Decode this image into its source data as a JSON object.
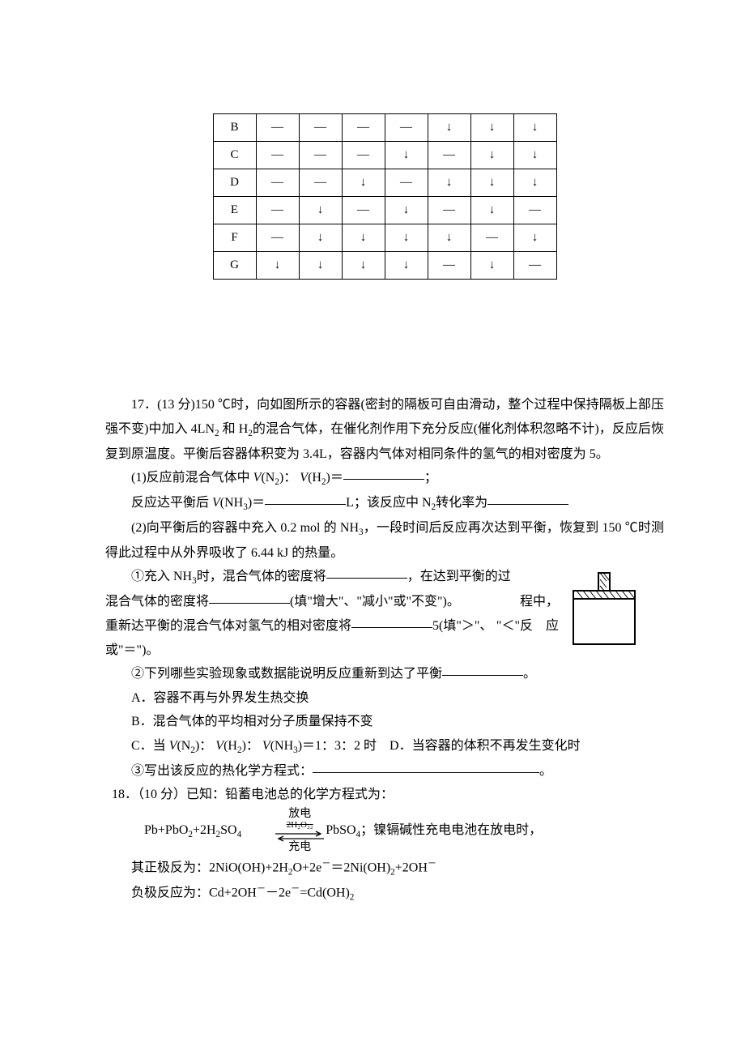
{
  "table": {
    "rows": [
      {
        "label": "B",
        "cells": [
          "—",
          "—",
          "—",
          "—",
          "↓",
          "↓",
          "↓"
        ]
      },
      {
        "label": "C",
        "cells": [
          "—",
          "—",
          "—",
          "↓",
          "—",
          "↓",
          "↓"
        ]
      },
      {
        "label": "D",
        "cells": [
          "—",
          "—",
          "↓",
          "—",
          "↓",
          "↓",
          "↓"
        ]
      },
      {
        "label": "E",
        "cells": [
          "—",
          "↓",
          "—",
          "↓",
          "—",
          "↓",
          "—"
        ]
      },
      {
        "label": "F",
        "cells": [
          "—",
          "↓",
          "↓",
          "↓",
          "↓",
          "—",
          "↓"
        ]
      },
      {
        "label": "G",
        "cells": [
          "↓",
          "↓",
          "↓",
          "↓",
          "—",
          "↓",
          "—"
        ]
      }
    ]
  },
  "q17": {
    "lead": "17．(13 分)150 ℃时，向如图所示的容器(密封的隔板可自由滑动，整个过程中保持隔板上部压强不变)中加入 4LN",
    "lead2": " 和 H",
    "lead3": "的混合气体，在催化剂作用下充分反应(催化剂体积忽略不计)，反应后恢复到原温度。平衡后容器体积变为 3.4L，容器内气体对相同条件的氢气的相对密度为 5。",
    "p1a": "(1)反应前混合气体中 ",
    "p1b": "＝",
    "p1c": "；",
    "p2a": "反应达平衡后 ",
    "p2b": "＝",
    "p2c": "L；该反应中 N",
    "p2d": "转化率为",
    "p3": "(2)向平衡后的容器中充入 0.2 mol 的 NH",
    "p3b": "，一段时间后反应再次达到平衡，恢复到 150 ℃时测得此过程中从外界吸收了 6.44 kJ 的热量。",
    "p4a": "①充入 NH",
    "p4b": "时，混合气体的密度将",
    "p4c": "，在达到平衡的过",
    "p4r": "程中，",
    "p4d": "混合气体的密度将",
    "p4e": "(填\"增大\"、\"减小\"或\"不变\")。",
    "p4r2": "反　应",
    "p4f": "重新达平衡的混合气体对氢气的相对密度将",
    "p4g": "5(填\"＞\"、",
    "p4r3": "\"＜\"",
    "p4h": "或\"＝\")。",
    "p5": "②下列哪些实验现象或数据能说明反应重新到达了平衡",
    "p5b": "。",
    "optA": "A．容器不再与外界发生热交换",
    "optB": "B．混合气体的平均相对分子质量保持不变",
    "optC": "C．当 ",
    "optCb": "＝1：3：2 时　D．当容器的体积不再发生变化时",
    "p6a": "③写出该反应的热化学方程式：",
    "p6b": "。",
    "vn2": "V",
    "n2": "(N",
    "h2": "(H",
    "nh3": "(NH",
    "close": ")",
    "colon": "："
  },
  "q18": {
    "lead": "18．（10 分）已知：铅蓄电池总的化学方程式为：",
    "eqL": "Pb+PbO",
    "eqL2": "+2H",
    "eqL3": "SO",
    "eqTop": "放电",
    "eqMid": "2H₂O₂₂",
    "eqBot": "充电",
    "eqR": "PbSO",
    "eqR2": "；镍镉碱性充电电池在放电时，",
    "pos": "其正极反为：2NiO(OH)+2H",
    "pos2": "O+2e",
    "pos3": "＝2Ni(OH)",
    "pos4": "+2OH",
    "neg": "负极反应为：Cd+2OH",
    "neg2": "－2e",
    "neg3": "=Cd(OH)"
  },
  "style": {
    "blank_short": "92px",
    "blank_med": "100px",
    "blank_long": "280px"
  }
}
